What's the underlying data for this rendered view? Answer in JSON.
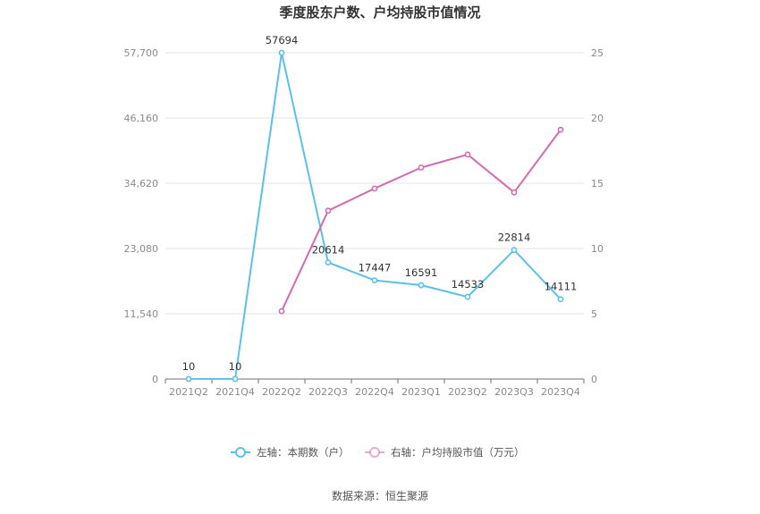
{
  "chart_data": {
    "type": "line",
    "title": "季度股东户数、户均持股市值情况",
    "categories": [
      "2021Q2",
      "2021Q4",
      "2022Q2",
      "2022Q3",
      "2022Q4",
      "2023Q1",
      "2023Q2",
      "2023Q3",
      "2023Q4"
    ],
    "left_axis": {
      "min": 0,
      "max": 57700,
      "ticks": [
        "0",
        "11,540",
        "23,080",
        "34,620",
        "46,160",
        "57,700"
      ]
    },
    "right_axis": {
      "min": 0,
      "max": 25,
      "ticks": [
        "0",
        "5",
        "10",
        "15",
        "20",
        "25"
      ]
    },
    "series": [
      {
        "name": "左轴：本期数（户）",
        "axis": "left",
        "color": "#5bc0eb",
        "values": [
          10,
          10,
          57694,
          20614,
          17447,
          16591,
          14533,
          22814,
          14111
        ],
        "labels": [
          "10",
          "10",
          "57694",
          "20614",
          "17447",
          "16591",
          "14533",
          "22814",
          "14111"
        ]
      },
      {
        "name": "右轴：户均持股市值（万元）",
        "axis": "right",
        "color": "#d46ab0",
        "values": [
          null,
          null,
          5.2,
          12.9,
          14.6,
          16.2,
          17.2,
          14.3,
          19.1
        ]
      }
    ],
    "grid": true,
    "legend": "bottom"
  },
  "source": "数据来源：恒生聚源"
}
